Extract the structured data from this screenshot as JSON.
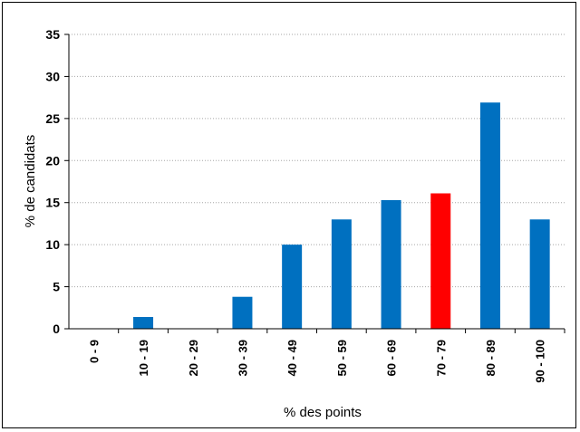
{
  "chart_data": {
    "type": "bar",
    "categories": [
      "0 - 9",
      "10 - 19",
      "20 - 29",
      "30 - 39",
      "40 - 49",
      "50 - 59",
      "60 - 69",
      "70 - 79",
      "80 - 89",
      "90 - 100"
    ],
    "values": [
      0,
      1.4,
      0,
      3.8,
      10,
      13,
      15.3,
      16.1,
      26.9,
      13
    ],
    "highlight_index": 7,
    "xlabel": "% des points",
    "ylabel": "% de candidats",
    "ylim": [
      0,
      35
    ],
    "yticks": [
      "0",
      "5",
      "10",
      "15",
      "20",
      "25",
      "30",
      "35"
    ],
    "grid": true,
    "legend": "none",
    "colors": {
      "bar": "#0070C0",
      "highlight": "#FF0000",
      "grid": "#A6A6A6",
      "axis": "#000000"
    }
  }
}
